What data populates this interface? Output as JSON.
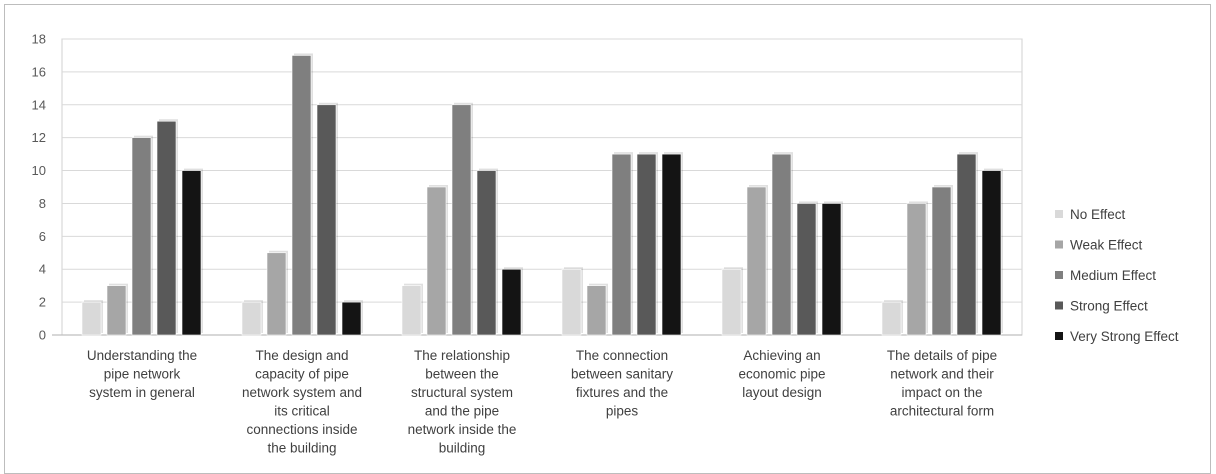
{
  "chart_data": {
    "type": "bar",
    "title": "",
    "xlabel": "",
    "ylabel": "",
    "ylim": [
      0,
      18
    ],
    "yticks": [
      0,
      2,
      4,
      6,
      8,
      10,
      12,
      14,
      16,
      18
    ],
    "grid": true,
    "legend_position": "right",
    "categories": [
      "Understanding the pipe network system in general",
      "The design  and capacity of pipe network system and its critical connections inside the building",
      "The relationship between the structural system and the pipe network inside the building",
      "The connection between sanitary fixtures and the pipes",
      "Achieving an economic pipe layout design",
      "The details of pipe network and their impact on the architectural form"
    ],
    "category_lines": [
      [
        "Understanding the",
        "pipe network",
        "system in general"
      ],
      [
        "The design  and",
        "capacity of pipe",
        "network system and",
        "its critical",
        "connections inside",
        "the building"
      ],
      [
        "The relationship",
        "between the",
        "structural system",
        "and the pipe",
        "network inside the",
        "building"
      ],
      [
        "The connection",
        "between sanitary",
        "fixtures and the",
        "pipes"
      ],
      [
        "Achieving an",
        "economic pipe",
        "layout design"
      ],
      [
        "The details of pipe",
        "network and their",
        "impact on the",
        "architectural form"
      ]
    ],
    "series": [
      {
        "name": "No Effect",
        "color": "#d9d9d9",
        "values": [
          2,
          2,
          3,
          4,
          4,
          2
        ]
      },
      {
        "name": "Weak Effect",
        "color": "#a6a6a6",
        "values": [
          3,
          5,
          9,
          3,
          9,
          8
        ]
      },
      {
        "name": "Medium Effect",
        "color": "#7f7f7f",
        "values": [
          12,
          17,
          14,
          11,
          11,
          9
        ]
      },
      {
        "name": "Strong Effect",
        "color": "#595959",
        "values": [
          13,
          14,
          10,
          11,
          8,
          11
        ]
      },
      {
        "name": "Very Strong Effect",
        "color": "#141414",
        "values": [
          10,
          2,
          4,
          11,
          8,
          10
        ]
      }
    ]
  }
}
